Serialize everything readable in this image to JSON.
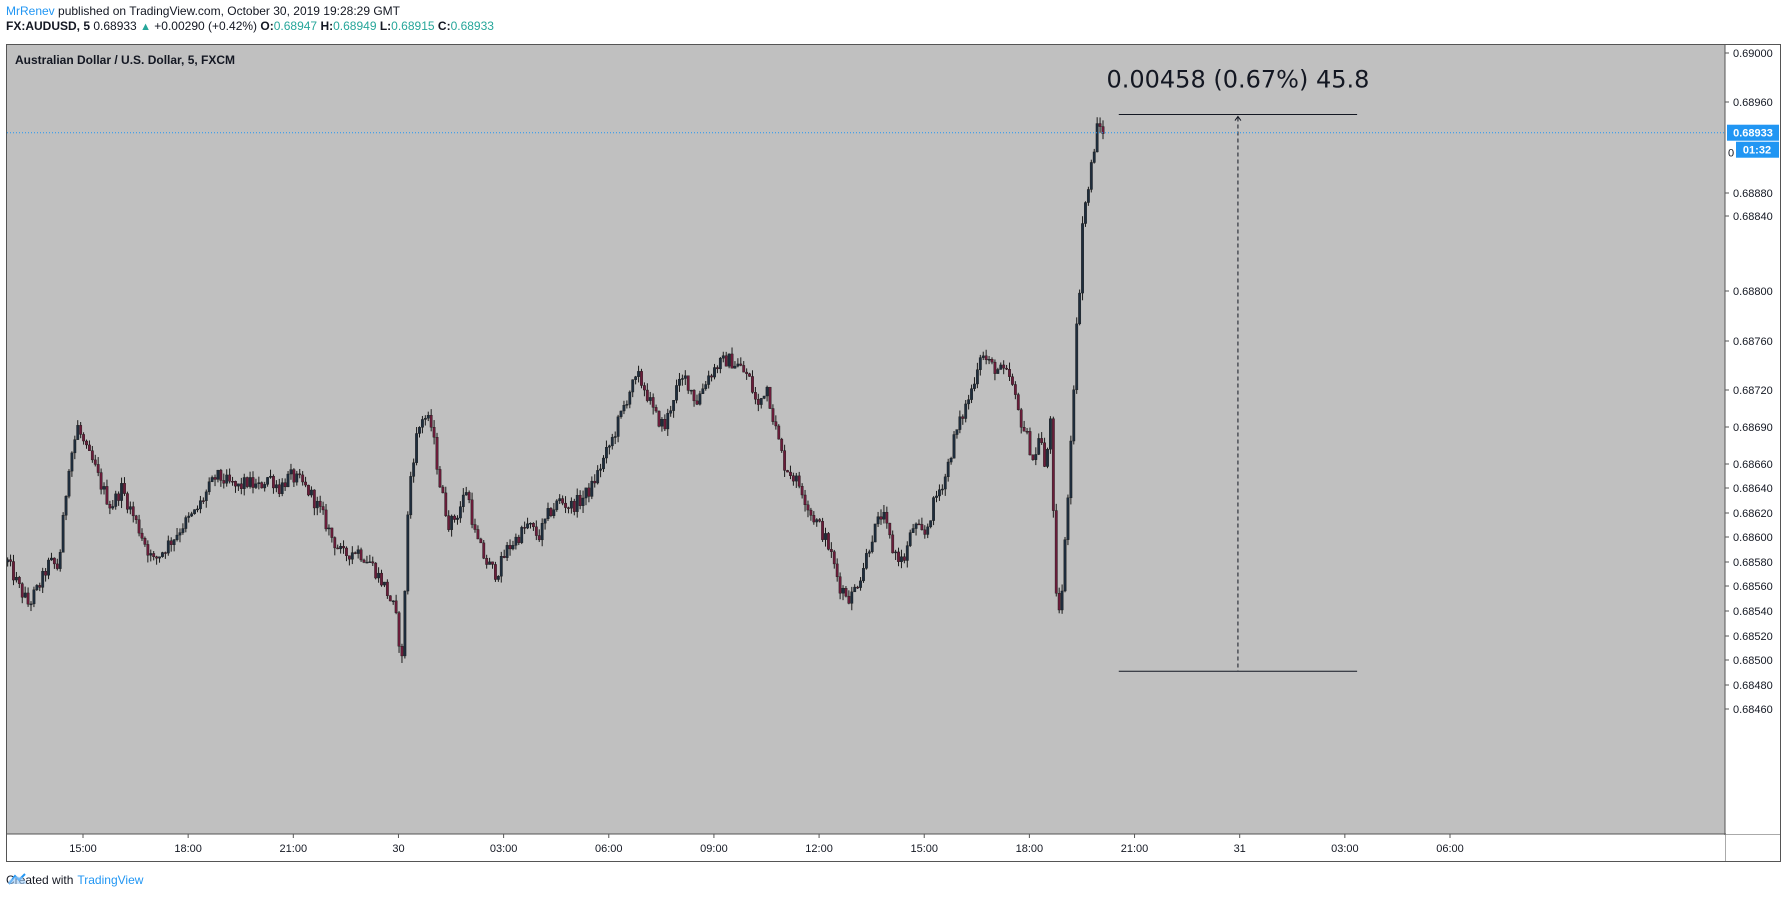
{
  "header": {
    "author": "MrRenev",
    "published": " published on TradingView.com, October 30, 2019 19:28:29 GMT",
    "symbol": "FX:AUDUSD, 5",
    "last": " 0.68933 ",
    "arrow": "▲",
    "change": " +0.00290 (+0.42%) ",
    "o_label": "O:",
    "o_value": "0.68947",
    "h_label": " H:",
    "h_value": "0.68949",
    "l_label": " L:",
    "l_value": "0.68915",
    "c_label": " C:",
    "c_value": "0.68933"
  },
  "footer": {
    "created_with": "Created with",
    "brand": "TradingView"
  },
  "colors": {
    "background": "#c0c0c0",
    "accent": "#2196f3",
    "up": "#26a69a",
    "candle_up": "#1e2d3d",
    "candle_down": "#6b1c3a"
  },
  "chart_data": {
    "type": "candlestick",
    "title": "Australian Dollar / U.S. Dollar, 5, FXCM",
    "y_axis": {
      "ticks": [
        "0.69000",
        "0.68960",
        "0.68880",
        "0.68840",
        "0.68800",
        "0.68760",
        "0.68720",
        "0.68690",
        "0.68660",
        "0.68640",
        "0.68620",
        "0.68600",
        "0.68580",
        "0.68560",
        "0.68540",
        "0.68520",
        "0.68500",
        "0.68480",
        "0.68460"
      ],
      "tick_values": [
        0.69,
        0.6896,
        0.6888,
        0.6884,
        0.688,
        0.6876,
        0.6872,
        0.6869,
        0.6866,
        0.6864,
        0.6862,
        0.686,
        0.6858,
        0.6856,
        0.6854,
        0.6852,
        0.685,
        0.6848,
        0.6846
      ],
      "hidden_tick": "0"
    },
    "x_axis": {
      "ticks": [
        "15:00",
        "18:00",
        "21:00",
        "30",
        "03:00",
        "06:00",
        "09:00",
        "12:00",
        "15:00",
        "18:00",
        "21:00",
        "31",
        "03:00",
        "06:00"
      ],
      "tick_hours": [
        15,
        18,
        21,
        24,
        27,
        30,
        33,
        36,
        39,
        42,
        45,
        48,
        51,
        54
      ],
      "range_hours": [
        12.83,
        55.9
      ]
    },
    "last_price": {
      "value": 0.68933,
      "label": "0.68933",
      "countdown": "01:32"
    },
    "series": {
      "keypoints_hours": [
        12.85,
        13.15,
        13.45,
        13.75,
        14.05,
        14.3,
        14.6,
        14.85,
        15.1,
        15.3,
        15.55,
        15.8,
        16.1,
        16.4,
        16.7,
        17.0,
        17.3,
        17.6,
        17.85,
        18.2,
        18.5,
        18.8,
        19.1,
        19.4,
        19.7,
        20.0,
        20.3,
        20.6,
        20.9,
        21.2,
        21.5,
        21.8,
        22.1,
        22.4,
        22.8,
        23.2,
        23.6,
        23.9,
        24.1,
        24.3,
        24.5,
        24.7,
        24.95,
        25.2,
        25.45,
        25.7,
        25.95,
        26.2,
        26.5,
        26.8,
        27.1,
        27.4,
        27.7,
        28.0,
        28.3,
        28.6,
        28.9,
        29.2,
        29.5,
        29.8,
        30.1,
        30.35,
        30.6,
        30.85,
        31.05,
        31.3,
        31.6,
        31.9,
        32.2,
        32.5,
        32.8,
        33.1,
        33.4,
        33.7,
        34.0,
        34.25,
        34.5,
        34.75,
        35.0,
        35.25,
        35.5,
        35.75,
        36.0,
        36.3,
        36.6,
        36.9,
        37.2,
        37.5,
        37.8,
        38.1,
        38.4,
        38.7,
        39.0,
        39.3,
        39.6,
        39.85,
        40.1,
        40.35,
        40.6,
        40.9,
        41.2,
        41.45,
        41.7,
        41.95,
        42.15,
        42.3,
        42.45,
        42.6,
        42.75,
        42.9,
        43.05,
        43.2,
        43.35,
        43.55,
        43.75,
        43.95,
        44.15
      ],
      "keypoints_close": [
        0.6858,
        0.6856,
        0.68545,
        0.6856,
        0.6858,
        0.68575,
        0.6866,
        0.6869,
        0.6867,
        0.6866,
        0.6864,
        0.68625,
        0.6864,
        0.6862,
        0.686,
        0.6858,
        0.6859,
        0.686,
        0.6861,
        0.6862,
        0.68635,
        0.6865,
        0.68645,
        0.6864,
        0.68645,
        0.6864,
        0.6865,
        0.6864,
        0.6865,
        0.68645,
        0.68635,
        0.6862,
        0.686,
        0.68585,
        0.6859,
        0.6858,
        0.6856,
        0.6854,
        0.685,
        0.6864,
        0.6868,
        0.687,
        0.6869,
        0.6864,
        0.6861,
        0.6862,
        0.6864,
        0.686,
        0.6858,
        0.6857,
        0.6859,
        0.686,
        0.6861,
        0.686,
        0.6862,
        0.6863,
        0.68625,
        0.6863,
        0.6864,
        0.6866,
        0.6868,
        0.687,
        0.6872,
        0.6873,
        0.6872,
        0.687,
        0.6869,
        0.6872,
        0.6873,
        0.6871,
        0.6873,
        0.6874,
        0.68745,
        0.6874,
        0.6873,
        0.68705,
        0.68725,
        0.6869,
        0.6866,
        0.6865,
        0.6864,
        0.6862,
        0.6861,
        0.6859,
        0.6856,
        0.6855,
        0.6857,
        0.686,
        0.6862,
        0.6859,
        0.6858,
        0.6861,
        0.686,
        0.6863,
        0.6865,
        0.6868,
        0.687,
        0.6872,
        0.6875,
        0.6874,
        0.68735,
        0.6873,
        0.687,
        0.6868,
        0.6866,
        0.6869,
        0.6865,
        0.687,
        0.6855,
        0.6854,
        0.6861,
        0.6869,
        0.6877,
        0.6885,
        0.689,
        0.6894,
        0.68933
      ]
    },
    "measure": {
      "label": "0.00458 (0.67%) 45.8",
      "start_hour": 44.55,
      "end_hour": 51.35,
      "top_price": 0.68949,
      "bottom_price": 0.68491
    }
  }
}
